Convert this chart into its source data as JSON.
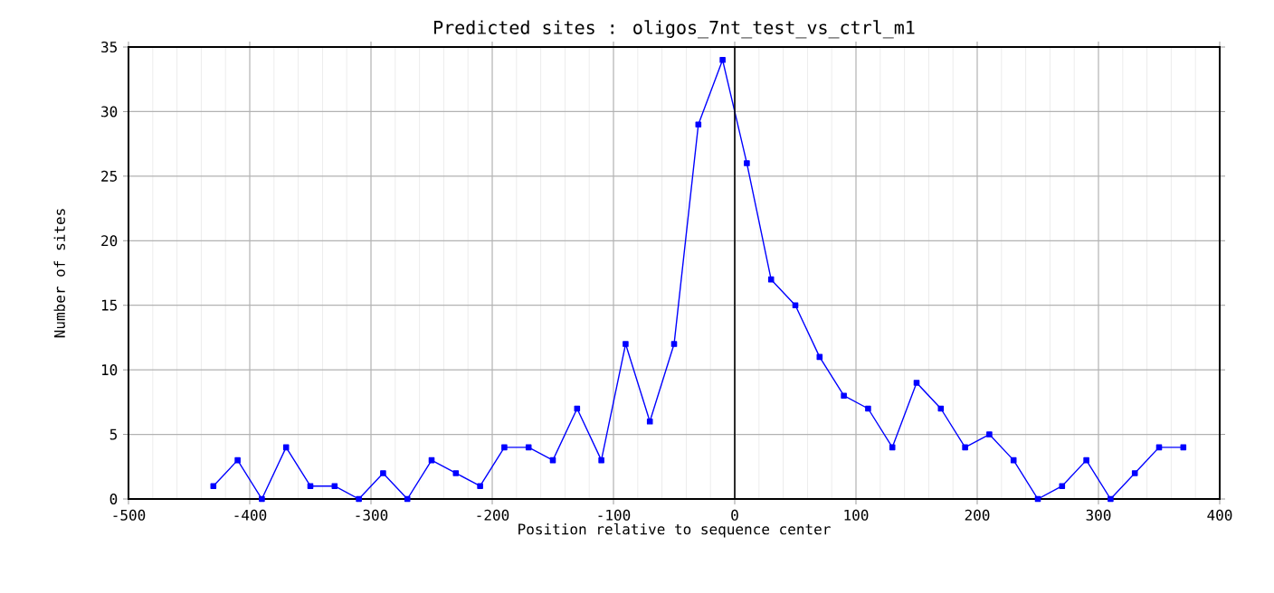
{
  "chart_data": {
    "type": "line",
    "title": "Predicted sites : oligos_7nt_test_vs_ctrl_m1",
    "xlabel": "Position relative to sequence center",
    "ylabel": "Number of sites",
    "x": [
      -430,
      -410,
      -390,
      -370,
      -350,
      -330,
      -310,
      -290,
      -270,
      -250,
      -230,
      -210,
      -190,
      -170,
      -150,
      -130,
      -110,
      -90,
      -70,
      -50,
      -30,
      -10,
      10,
      30,
      50,
      70,
      90,
      110,
      130,
      150,
      170,
      190,
      210,
      230,
      250,
      270,
      290,
      310,
      330,
      350,
      370
    ],
    "series": [
      {
        "color": "#0000ff",
        "values": [
          1,
          3,
          0,
          4,
          1,
          1,
          0,
          2,
          0,
          3,
          2,
          1,
          4,
          4,
          3,
          7,
          3,
          12,
          6,
          12,
          29,
          34,
          26,
          17,
          15,
          11,
          8,
          7,
          4,
          9,
          7,
          4,
          5,
          3,
          0,
          1,
          3,
          0,
          2,
          4,
          4
        ]
      }
    ],
    "xlim": [
      -500,
      400
    ],
    "ylim": [
      0,
      35
    ],
    "xticks": [
      -500,
      -400,
      -300,
      -200,
      -100,
      0,
      100,
      200,
      300,
      400
    ],
    "yticks": [
      0,
      5,
      10,
      15,
      20,
      25,
      30,
      35
    ],
    "grid": true,
    "marker": "square",
    "line_style": "solid",
    "ref_lines": [
      {
        "axis": "x",
        "value": 0,
        "color": "#000000",
        "line_style": "solid"
      }
    ]
  }
}
